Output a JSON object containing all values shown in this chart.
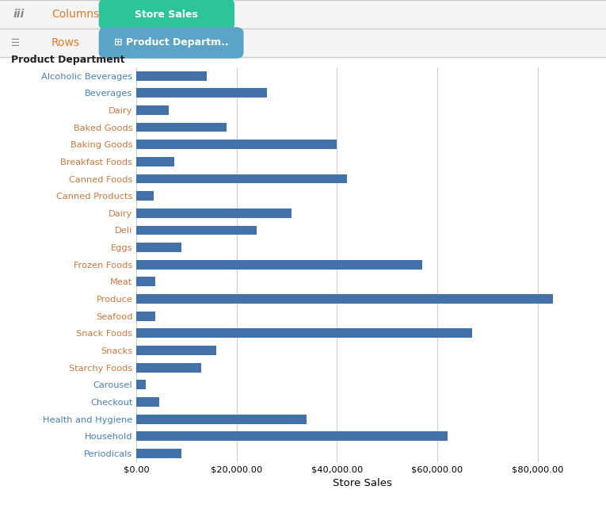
{
  "categories": [
    "Alcoholic Beverages",
    "Beverages",
    "Dairy",
    "Baked Goods",
    "Baking Goods",
    "Breakfast Foods",
    "Canned Foods",
    "Canned Products",
    "Dairy",
    "Deli",
    "Eggs",
    "Frozen Foods",
    "Meat",
    "Produce",
    "Seafood",
    "Snack Foods",
    "Snacks",
    "Starchy Foods",
    "Carousel",
    "Checkout",
    "Health and Hygiene",
    "Household",
    "Periodicals"
  ],
  "values": [
    14000,
    26000,
    6500,
    18000,
    40000,
    7500,
    42000,
    3500,
    31000,
    24000,
    9000,
    57000,
    3800,
    83000,
    3800,
    67000,
    16000,
    13000,
    1800,
    4500,
    34000,
    62000,
    9000
  ],
  "label_colors": [
    "#4a7fb5",
    "#4a7fb5",
    "#c87941",
    "#c87941",
    "#c87941",
    "#c87941",
    "#c87941",
    "#c87941",
    "#c87941",
    "#c87941",
    "#c87941",
    "#c87941",
    "#c87941",
    "#c87941",
    "#c87941",
    "#c87941",
    "#c87941",
    "#c87941",
    "#4a7fb5",
    "#4a7fb5",
    "#4a7fb5",
    "#4a7fb5",
    "#4a7fb5"
  ],
  "bar_color": "#4472a8",
  "xlabel": "Store Sales",
  "background_color": "#ffffff",
  "chart_background": "#ffffff",
  "grid_color": "#d0d0d0",
  "columns_pill_text": "Store Sales",
  "columns_pill_color": "#2ec49a",
  "rows_pill_text": "⊞ Product Departm..",
  "rows_pill_color": "#5ba4c8",
  "product_dept_label": "Product Department",
  "columns_label": "Columns",
  "rows_label": "Rows",
  "header1_bg": "#f5f5f5",
  "header2_bg": "#f5f5f5",
  "xlim": [
    0,
    90000
  ],
  "xticks": [
    0,
    20000,
    40000,
    60000,
    80000
  ]
}
